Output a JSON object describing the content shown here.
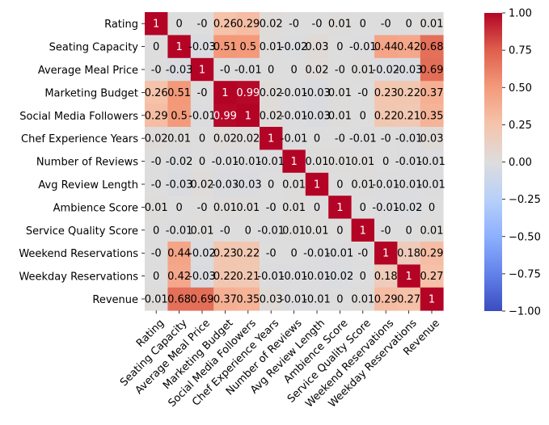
{
  "chart_data": {
    "type": "heatmap",
    "labels": [
      "Rating",
      "Seating Capacity",
      "Average Meal Price",
      "Marketing Budget",
      "Social Media Followers",
      "Chef Experience Years",
      "Number of Reviews",
      "Avg Review Length",
      "Ambience Score",
      "Service Quality Score",
      "Weekend Reservations",
      "Weekday Reservations",
      "Revenue"
    ],
    "matrix": [
      [
        1,
        0,
        0,
        0.26,
        0.29,
        0.02,
        0,
        0,
        0.01,
        0,
        0,
        0,
        0.01
      ],
      [
        0,
        1,
        -0.03,
        0.51,
        0.5,
        0.01,
        -0.02,
        0.03,
        0,
        -0.01,
        0.44,
        0.42,
        0.68
      ],
      [
        0,
        -0.03,
        1,
        0,
        -0.01,
        0,
        0,
        0.02,
        0,
        0.01,
        -0.02,
        -0.03,
        0.69
      ],
      [
        0.26,
        0.51,
        0,
        1,
        0.99,
        0.02,
        -0.01,
        -0.03,
        0.01,
        0,
        0.23,
        0.22,
        0.37
      ],
      [
        0.29,
        0.5,
        -0.01,
        0.99,
        1,
        0.02,
        -0.01,
        -0.03,
        0.01,
        0,
        0.22,
        0.21,
        0.35
      ],
      [
        0.02,
        0.01,
        0,
        0.02,
        0.02,
        1,
        -0.01,
        0,
        0,
        -0.01,
        0,
        -0.01,
        0.03
      ],
      [
        0,
        -0.02,
        0,
        -0.01,
        -0.01,
        -0.01,
        1,
        0.01,
        0.01,
        0.01,
        0,
        -0.01,
        -0.01
      ],
      [
        0,
        -0.03,
        0.02,
        -0.03,
        -0.03,
        0,
        0.01,
        1,
        0,
        0.01,
        -0.01,
        -0.01,
        -0.01
      ],
      [
        0.01,
        0,
        0,
        0.01,
        0.01,
        0,
        0.01,
        0,
        1,
        0,
        -0.01,
        -0.02,
        0
      ],
      [
        0,
        -0.01,
        0.01,
        0,
        0,
        -0.01,
        0.01,
        0.01,
        0,
        1,
        0,
        0,
        0.01
      ],
      [
        0,
        0.44,
        -0.02,
        0.23,
        0.22,
        0,
        0,
        -0.01,
        -0.01,
        0,
        1,
        0.18,
        0.29
      ],
      [
        0,
        0.42,
        -0.03,
        0.22,
        0.21,
        -0.01,
        -0.01,
        -0.01,
        -0.02,
        0,
        0.18,
        1,
        0.27
      ],
      [
        0.01,
        0.68,
        0.69,
        0.37,
        0.35,
        0.03,
        -0.01,
        -0.01,
        0,
        0.01,
        0.29,
        0.27,
        1
      ]
    ],
    "colorbar": {
      "min": -1,
      "max": 1,
      "ticks": [
        "1.00",
        "0.75",
        "0.50",
        "0.25",
        "0.00",
        "−0.25",
        "−0.50",
        "−0.75",
        "−1.00"
      ],
      "colormap": "coolwarm"
    },
    "annotations": true,
    "title": "",
    "xlabel": "",
    "ylabel": ""
  },
  "colors": {
    "low": "#3b4cc0",
    "mid": "#dddddd",
    "high": "#b40426"
  }
}
